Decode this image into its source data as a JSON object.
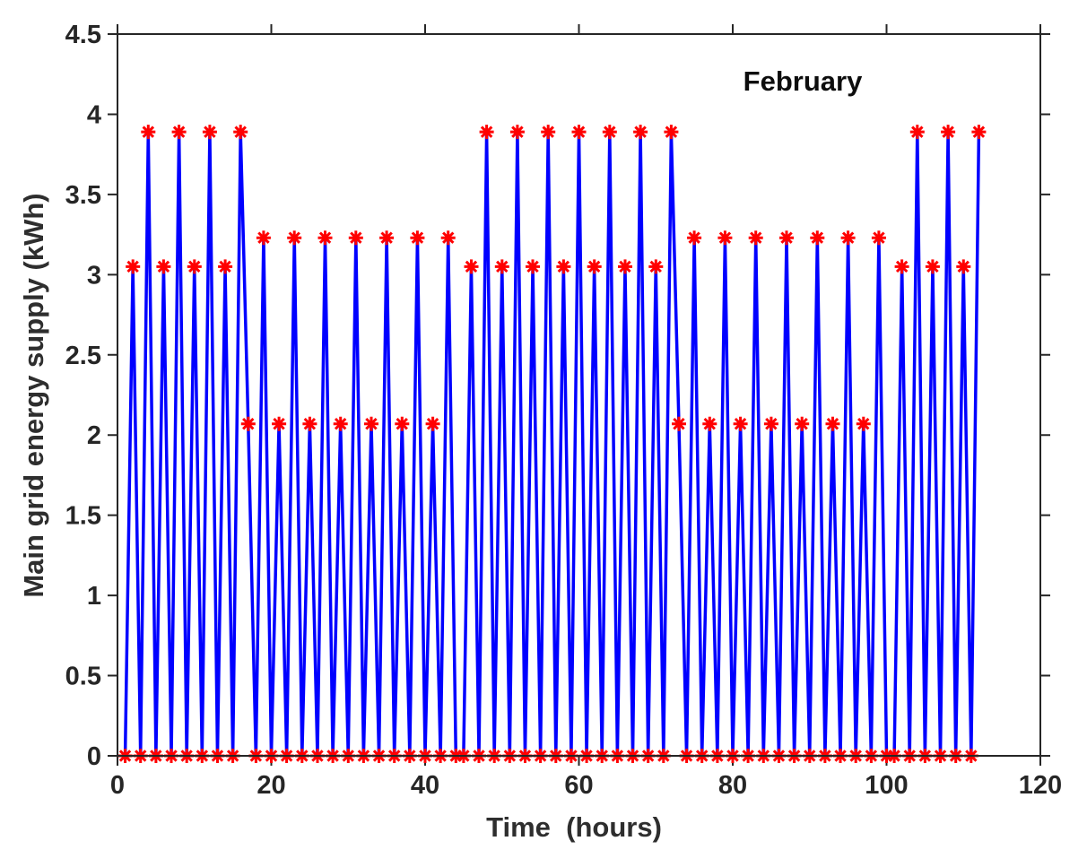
{
  "figure": {
    "background": "#ffffff"
  },
  "chart_data": {
    "type": "line",
    "annotation": "February",
    "xlabel": "Time  (hours)",
    "ylabel": "Main grid energy supply (kWh)",
    "xlim": [
      0,
      120
    ],
    "ylim": [
      0,
      4.5
    ],
    "x_ticks": [
      0,
      20,
      40,
      60,
      80,
      100,
      120
    ],
    "y_ticks": [
      0,
      0.5,
      1,
      1.5,
      2,
      2.5,
      3,
      3.5,
      4,
      4.5
    ],
    "grid": false,
    "legend": "none",
    "line_color": "#0000ff",
    "marker": "asterisk-8-arm",
    "marker_color": "#ff0000",
    "axis_color": "#262626",
    "peak_levels": [
      2.07,
      3.05,
      3.23,
      3.89
    ],
    "x": [
      1,
      2,
      3,
      4,
      5,
      6,
      7,
      8,
      9,
      10,
      11,
      12,
      13,
      14,
      15,
      16,
      17,
      18,
      19,
      20,
      21,
      22,
      23,
      24,
      25,
      26,
      27,
      28,
      29,
      30,
      31,
      32,
      33,
      34,
      35,
      36,
      37,
      38,
      39,
      40,
      41,
      42,
      43,
      44,
      45,
      46,
      47,
      48,
      49,
      50,
      51,
      52,
      53,
      54,
      55,
      56,
      57,
      58,
      59,
      60,
      61,
      62,
      63,
      64,
      65,
      66,
      67,
      68,
      69,
      70,
      71,
      72,
      73,
      74,
      75,
      76,
      77,
      78,
      79,
      80,
      81,
      82,
      83,
      84,
      85,
      86,
      87,
      88,
      89,
      90,
      91,
      92,
      93,
      94,
      95,
      96,
      97,
      98,
      99,
      100,
      101,
      102,
      103,
      104,
      105,
      106,
      107,
      108,
      109,
      110,
      111,
      112
    ],
    "values": [
      0,
      3.05,
      0,
      3.89,
      0,
      3.05,
      0,
      3.89,
      0,
      3.05,
      0,
      3.89,
      0,
      3.05,
      0,
      3.89,
      2.07,
      0,
      3.23,
      0,
      2.07,
      0,
      3.23,
      0,
      2.07,
      0,
      3.23,
      0,
      2.07,
      0,
      3.23,
      0,
      2.07,
      0,
      3.23,
      0,
      2.07,
      0,
      3.23,
      0,
      2.07,
      0,
      3.23,
      0,
      0,
      3.05,
      0,
      3.89,
      0,
      3.05,
      0,
      3.89,
      0,
      3.05,
      0,
      3.89,
      0,
      3.05,
      0,
      3.89,
      0,
      3.05,
      0,
      3.89,
      0,
      3.05,
      0,
      3.89,
      0,
      3.05,
      0,
      3.89,
      2.07,
      0,
      3.23,
      0,
      2.07,
      0,
      3.23,
      0,
      2.07,
      0,
      3.23,
      0,
      2.07,
      0,
      3.23,
      0,
      2.07,
      0,
      3.23,
      0,
      2.07,
      0,
      3.23,
      0,
      2.07,
      0,
      3.23,
      0,
      0,
      3.05,
      0,
      3.89,
      0,
      3.05,
      0,
      3.89,
      0,
      3.05,
      0,
      3.89
    ]
  }
}
